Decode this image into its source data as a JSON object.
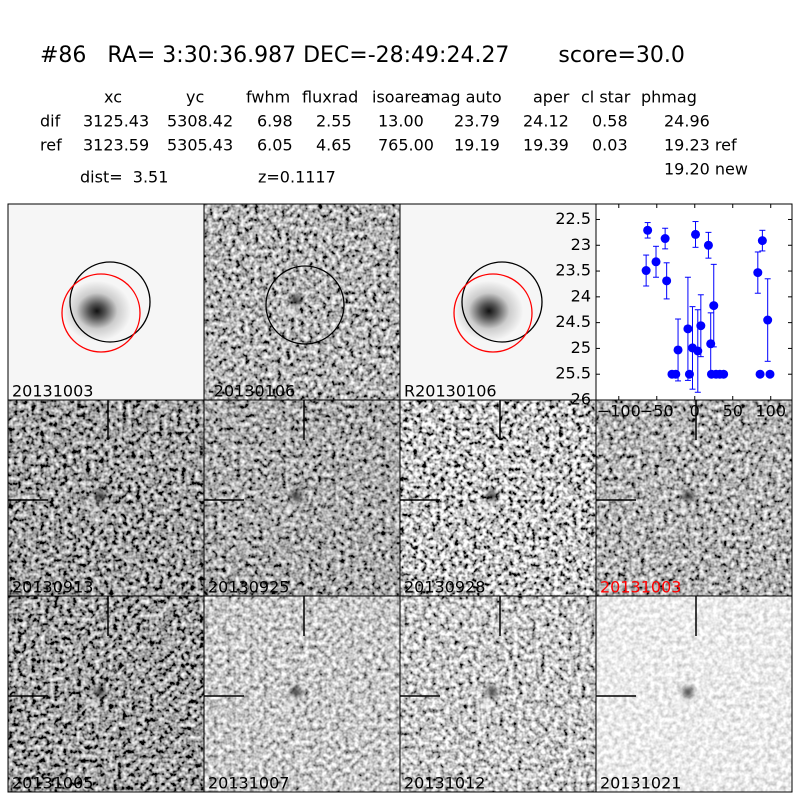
{
  "header": {
    "title": "#86   RA= 3:30:36.987 DEC=-28:49:24.27       score=30.0"
  },
  "table": {
    "columns": [
      "xc",
      "yc",
      "fwhm",
      "fluxrad",
      "isoarea",
      "mag auto",
      "aper",
      "cl star",
      "phmag"
    ],
    "rows": [
      {
        "label": "dif",
        "values": [
          "3125.43",
          "5308.42",
          "6.98",
          "2.55",
          "13.00",
          "23.79",
          "24.12",
          "0.58",
          "24.96"
        ]
      },
      {
        "label": "ref",
        "values": [
          "3123.59",
          "5305.43",
          "6.05",
          "4.65",
          "765.00",
          "19.19",
          "19.39",
          "0.03",
          "19.23 ref"
        ]
      }
    ],
    "note": "19.20 new"
  },
  "info": {
    "dist": "dist=  3.51",
    "z": "z=0.1117"
  },
  "panels": [
    {
      "label": "20131003",
      "label_color": "#000000"
    },
    {
      "label": "-20130106",
      "label_color": "#000000"
    },
    {
      "label": "R20130106",
      "label_color": "#000000"
    },
    {
      "label": "20130913",
      "label_color": "#000000"
    },
    {
      "label": "20130925",
      "label_color": "#000000"
    },
    {
      "label": "20130928",
      "label_color": "#000000"
    },
    {
      "label": "20131003",
      "label_color": "#ff0000"
    },
    {
      "label": "20131005",
      "label_color": "#000000"
    },
    {
      "label": "20131007",
      "label_color": "#000000"
    },
    {
      "label": "20131012",
      "label_color": "#000000"
    },
    {
      "label": "20131021",
      "label_color": "#000000"
    }
  ],
  "chart_data": {
    "type": "errorbar",
    "x": [
      -64,
      -62,
      -51,
      -39,
      -37,
      -30,
      -25,
      -22,
      -9,
      -7,
      -3,
      1,
      4,
      8,
      18,
      21,
      22,
      25,
      28,
      33,
      38,
      83,
      86,
      89,
      96,
      99
    ],
    "series": [
      {
        "color": "#0000ff",
        "values": [
          23.49,
          22.71,
          23.32,
          22.87,
          23.69,
          25.5,
          25.5,
          25.03,
          24.62,
          25.5,
          24.99,
          22.79,
          25.05,
          24.56,
          23.0,
          24.91,
          25.5,
          24.17,
          25.5,
          25.5,
          25.5,
          23.53,
          25.5,
          22.91,
          24.45,
          25.5
        ],
        "errors": [
          0.3,
          0.15,
          0.3,
          0.2,
          0.35,
          0.05,
          0.05,
          0.6,
          1.0,
          0.05,
          0.8,
          0.25,
          0.8,
          0.6,
          0.25,
          0.6,
          0.05,
          0.8,
          0.05,
          0.05,
          0.05,
          0.4,
          0.05,
          0.2,
          0.8,
          0.05
        ]
      }
    ],
    "xlim": [
      -130,
      128
    ],
    "ylim": [
      22.2,
      26.0
    ],
    "y_inverted": true,
    "xticks": [
      {
        "value": -100,
        "label": "−100"
      },
      {
        "value": -50,
        "label": "−50"
      },
      0,
      50,
      100
    ],
    "yticks": [
      22.5,
      23.0,
      23.5,
      24.0,
      24.5,
      25.0,
      25.5,
      26.0
    ]
  }
}
